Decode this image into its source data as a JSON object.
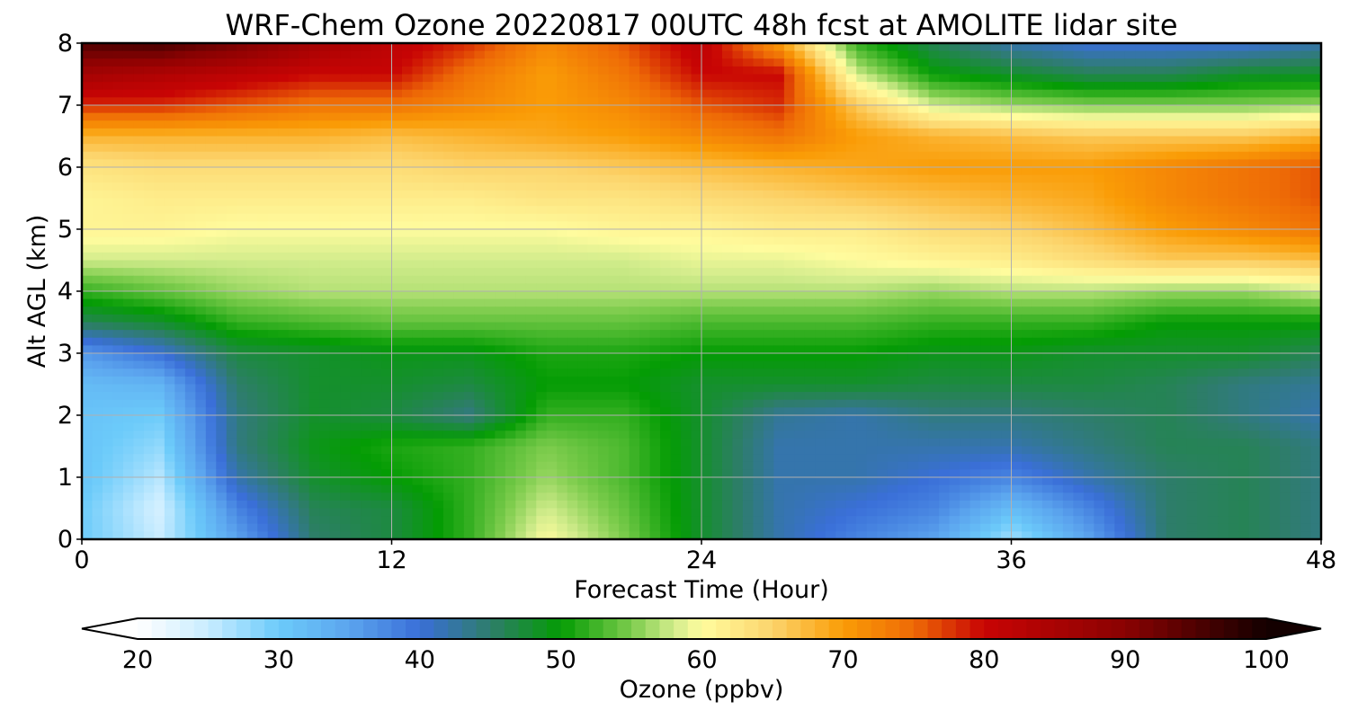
{
  "chart_data": {
    "type": "heatmap",
    "title": "WRF-Chem Ozone  20220817 00UTC 48h fcst at AMOLITE lidar site",
    "xlabel": "Forecast Time (Hour)",
    "ylabel": "Alt AGL (km)",
    "xlim": [
      0,
      48
    ],
    "ylim": [
      0,
      8
    ],
    "xticks": [
      "0",
      "12",
      "24",
      "36",
      "48"
    ],
    "yticks": [
      "0",
      "1",
      "2",
      "3",
      "4",
      "5",
      "6",
      "7",
      "8"
    ],
    "grid": true,
    "x": [
      0,
      3,
      6,
      9,
      12,
      15,
      18,
      21,
      24,
      27,
      30,
      33,
      36,
      39,
      42,
      45,
      48
    ],
    "y": [
      0,
      0.5,
      1,
      1.5,
      2,
      2.5,
      3,
      3.5,
      4,
      4.5,
      5,
      5.5,
      6,
      6.5,
      7,
      7.5,
      8
    ],
    "z": [
      [
        30,
        25,
        35,
        45,
        47,
        52,
        60,
        55,
        48,
        42,
        38,
        35,
        27,
        35,
        45,
        46,
        44
      ],
      [
        30,
        24,
        38,
        46,
        47,
        52,
        58,
        54,
        48,
        42,
        40,
        38,
        32,
        38,
        45,
        46,
        44
      ],
      [
        31,
        26,
        42,
        48,
        50,
        52,
        56,
        53,
        48,
        42,
        42,
        40,
        38,
        42,
        45,
        46,
        44
      ],
      [
        31,
        28,
        44,
        49,
        51,
        52,
        55,
        53,
        48,
        42,
        42,
        42,
        42,
        44,
        46,
        46,
        44
      ],
      [
        31,
        30,
        44,
        48,
        47,
        44,
        52,
        52,
        48,
        43,
        42,
        44,
        44,
        45,
        46,
        44,
        42
      ],
      [
        32,
        33,
        45,
        48,
        48,
        47,
        50,
        50,
        48,
        48,
        48,
        47,
        47,
        47,
        46,
        44,
        43
      ],
      [
        36,
        40,
        47,
        48,
        49,
        49,
        51,
        51,
        50,
        50,
        50,
        49,
        49,
        48,
        48,
        48,
        46
      ],
      [
        46,
        48,
        52,
        53,
        54,
        54,
        54,
        54,
        53,
        53,
        53,
        52,
        52,
        52,
        50,
        50,
        50
      ],
      [
        52,
        54,
        56,
        57,
        57,
        57,
        57,
        57,
        57,
        57,
        57,
        56,
        57,
        57,
        56,
        56,
        58
      ],
      [
        58,
        58,
        58,
        58,
        58,
        58,
        58,
        58,
        59,
        59,
        60,
        61,
        62,
        64,
        66,
        66,
        67
      ],
      [
        61,
        61,
        60,
        60,
        60,
        60,
        60,
        61,
        61,
        62,
        62,
        64,
        65,
        67,
        70,
        72,
        74
      ],
      [
        61,
        62,
        62,
        62,
        62,
        62,
        63,
        63,
        64,
        65,
        66,
        67,
        68,
        69,
        72,
        74,
        76
      ],
      [
        63,
        64,
        64,
        64,
        64,
        65,
        65,
        66,
        67,
        68,
        69,
        70,
        70,
        70,
        72,
        74,
        76
      ],
      [
        68,
        68,
        68,
        68,
        67,
        68,
        69,
        70,
        72,
        74,
        70,
        68,
        67,
        66,
        66,
        66,
        68
      ],
      [
        78,
        78,
        76,
        74,
        74,
        72,
        70,
        72,
        76,
        78,
        66,
        58,
        56,
        55,
        55,
        55,
        56
      ],
      [
        86,
        84,
        82,
        80,
        80,
        74,
        70,
        74,
        80,
        80,
        58,
        50,
        48,
        46,
        46,
        48,
        48
      ],
      [
        95,
        96,
        92,
        86,
        82,
        78,
        72,
        76,
        82,
        70,
        52,
        46,
        42,
        40,
        40,
        40,
        42
      ]
    ],
    "colorbar": {
      "label": "Ozone  (ppbv)",
      "vmin": 20,
      "vmax": 100,
      "extend": "both",
      "ticks": [
        "20",
        "30",
        "40",
        "50",
        "60",
        "70",
        "80",
        "90",
        "100"
      ],
      "stops": [
        [
          20,
          "#ffffff"
        ],
        [
          25,
          "#c8ecff"
        ],
        [
          30,
          "#6ccbfa"
        ],
        [
          35,
          "#5ba4ee"
        ],
        [
          40,
          "#3a6fd8"
        ],
        [
          45,
          "#2e7d6a"
        ],
        [
          50,
          "#049c04"
        ],
        [
          55,
          "#7ccc4c"
        ],
        [
          58,
          "#d2ec8c"
        ],
        [
          60,
          "#fffc9e"
        ],
        [
          65,
          "#fcd46c"
        ],
        [
          70,
          "#fa9c06"
        ],
        [
          75,
          "#ee6a06"
        ],
        [
          80,
          "#c80404"
        ],
        [
          90,
          "#8a0202"
        ],
        [
          100,
          "#140000"
        ]
      ]
    }
  }
}
